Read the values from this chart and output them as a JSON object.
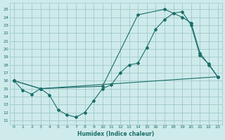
{
  "xlabel": "Humidex (Indice chaleur)",
  "background_color": "#ceeaea",
  "grid_color": "#a0c8c8",
  "line_color": "#1a6e6a",
  "xlim": [
    -0.5,
    23.5
  ],
  "ylim": [
    10.5,
    25.8
  ],
  "yticks": [
    11,
    12,
    13,
    14,
    15,
    16,
    17,
    18,
    19,
    20,
    21,
    22,
    23,
    24,
    25
  ],
  "xticks": [
    0,
    1,
    2,
    3,
    4,
    5,
    6,
    7,
    8,
    9,
    10,
    11,
    12,
    13,
    14,
    15,
    16,
    17,
    18,
    19,
    20,
    21,
    22,
    23
  ],
  "line1_x": [
    0,
    1,
    2,
    3,
    4,
    5,
    6,
    7,
    8,
    9,
    10,
    11,
    12,
    13,
    14,
    15,
    16,
    17,
    18,
    19,
    20,
    21,
    22,
    23
  ],
  "line1_y": [
    16,
    14.8,
    14.3,
    15.0,
    14.2,
    12.3,
    11.7,
    11.4,
    12.0,
    13.5,
    15.0,
    15.5,
    17.0,
    18.0,
    18.2,
    20.2,
    22.5,
    23.7,
    24.5,
    24.7,
    23.0,
    19.2,
    18.1,
    16.5
  ],
  "line2_x": [
    0,
    3,
    23
  ],
  "line2_y": [
    16,
    15,
    16.5
  ],
  "line3_x": [
    0,
    3,
    10,
    14,
    17,
    19,
    20,
    21,
    22,
    23
  ],
  "line3_y": [
    16,
    15,
    15.3,
    24.3,
    25.0,
    24.0,
    23.3,
    19.5,
    18.0,
    16.5
  ]
}
